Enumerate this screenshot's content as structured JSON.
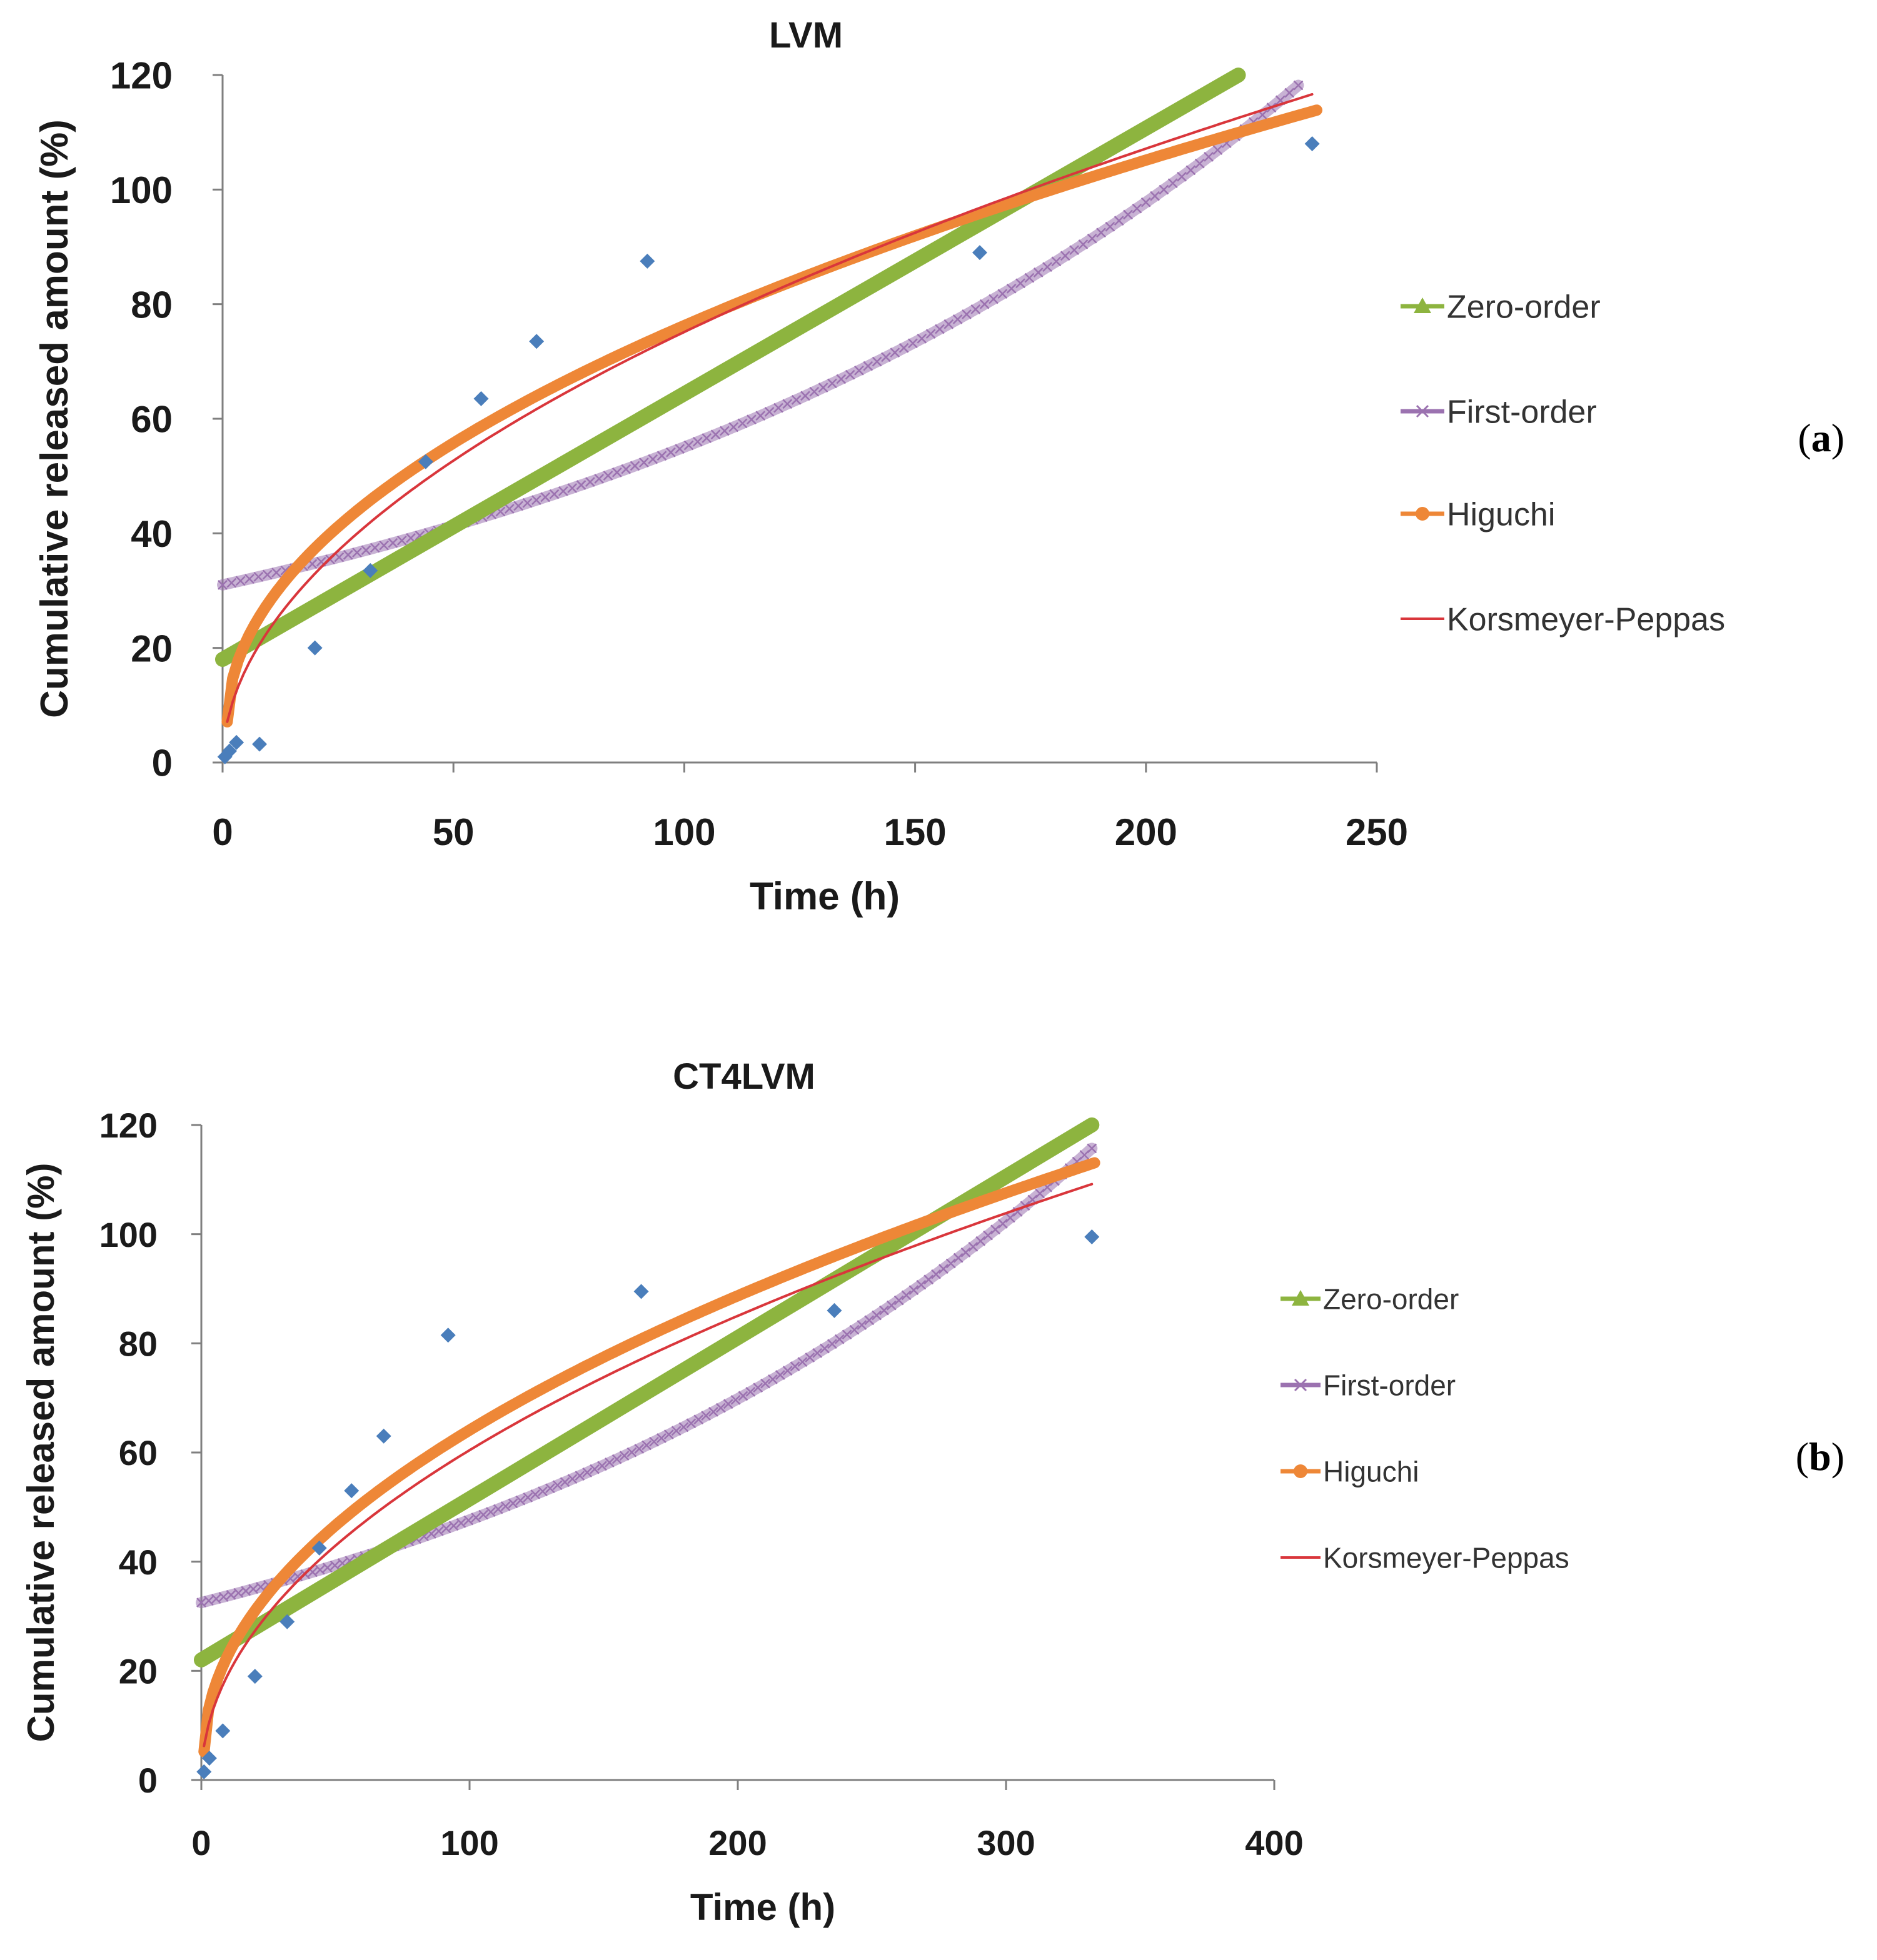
{
  "chart_data": [
    {
      "type": "scatter",
      "panel": "a",
      "panel_label": "(a)",
      "title": "LVM",
      "xlabel": "Time (h)",
      "ylabel": "Cumulative released amount (%)",
      "xlim": [
        0,
        250
      ],
      "ylim": [
        0,
        120
      ],
      "xticks": [
        "0",
        "50",
        "100",
        "150",
        "200",
        "250"
      ],
      "yticks": [
        "0",
        "20",
        "40",
        "60",
        "80",
        "100",
        "120"
      ],
      "observed": {
        "x": [
          0.5,
          1.5,
          3,
          8,
          20,
          32,
          44,
          56,
          68,
          92,
          164,
          236
        ],
        "y": [
          1,
          2,
          3.5,
          3.2,
          20,
          33.5,
          52.5,
          63.5,
          73.5,
          87.5,
          89,
          108
        ]
      },
      "legend": [
        {
          "label": "Zero-order",
          "color": "#8DB43F",
          "marker": "triangle"
        },
        {
          "label": "First-order",
          "color": "#9B72B0",
          "marker": "x"
        },
        {
          "label": "Higuchi",
          "color": "#EE8737",
          "marker": "circle"
        },
        {
          "label": "Korsmeyer-Peppas",
          "color": "#D9363B",
          "marker": "line"
        }
      ],
      "models": {
        "zero_order": {
          "intercept": 18,
          "slope": 0.4636,
          "x_end": 220
        },
        "first_order": {
          "a": 31,
          "k": 0.005744,
          "x_end": 233
        },
        "higuchi": {
          "a": 7.1,
          "b": 6.95,
          "x_start": 1,
          "x_end": 237
        },
        "korsmeyer_peppas": {
          "a": 7.11,
          "n": 0.512,
          "x_start": 1,
          "x_end": 236
        }
      }
    },
    {
      "type": "scatter",
      "panel": "b",
      "panel_label": "(b)",
      "title": "CT4LVM",
      "xlabel": "Time (h)",
      "ylabel": "Cumulative released amount (%)",
      "xlim": [
        0,
        400
      ],
      "ylim": [
        0,
        120
      ],
      "xticks": [
        "0",
        "100",
        "200",
        "300",
        "400"
      ],
      "yticks": [
        "0",
        "20",
        "40",
        "60",
        "80",
        "100",
        "120"
      ],
      "observed": {
        "x": [
          1,
          3,
          8,
          20,
          32,
          44,
          56,
          68,
          92,
          164,
          236,
          332
        ],
        "y": [
          1.5,
          4,
          9,
          19,
          29,
          42.5,
          53,
          63,
          81.5,
          89.5,
          86,
          99.5
        ]
      },
      "legend": [
        {
          "label": "Zero-order",
          "color": "#8DB43F",
          "marker": "triangle"
        },
        {
          "label": "First-order",
          "color": "#9B72B0",
          "marker": "x"
        },
        {
          "label": "Higuchi",
          "color": "#EE8737",
          "marker": "circle"
        },
        {
          "label": "Korsmeyer-Peppas",
          "color": "#D9363B",
          "marker": "line"
        }
      ],
      "models": {
        "zero_order": {
          "intercept": 22,
          "slope": 0.2952,
          "x_end": 332
        },
        "first_order": {
          "a": 32.5,
          "k": 0.003825,
          "x_end": 332
        },
        "higuchi": {
          "a": 5.2,
          "b": 5.92,
          "x_start": 1,
          "x_end": 333
        },
        "korsmeyer_peppas": {
          "a": 6.24,
          "n": 0.493,
          "x_start": 1,
          "x_end": 332
        }
      }
    }
  ]
}
